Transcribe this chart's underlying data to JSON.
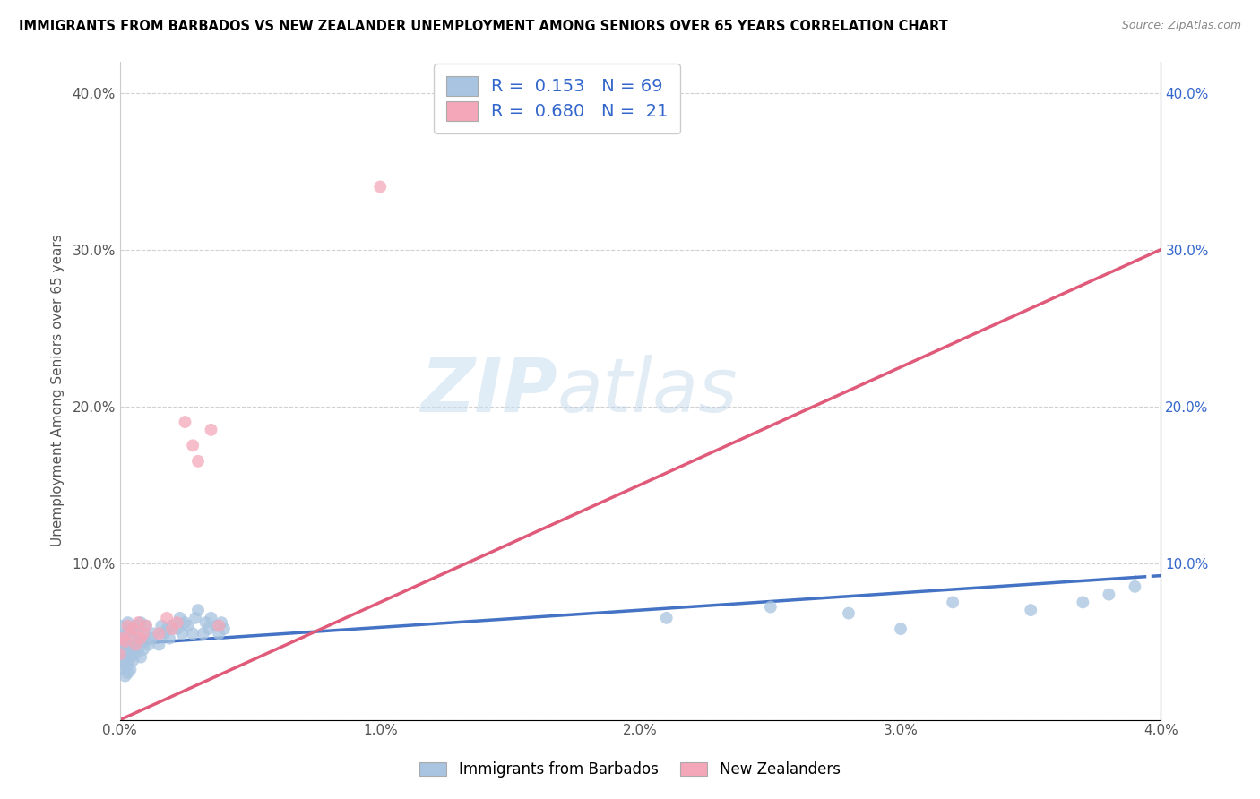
{
  "title": "IMMIGRANTS FROM BARBADOS VS NEW ZEALANDER UNEMPLOYMENT AMONG SENIORS OVER 65 YEARS CORRELATION CHART",
  "source": "Source: ZipAtlas.com",
  "ylabel": "Unemployment Among Seniors over 65 years",
  "xlim": [
    0.0,
    0.04
  ],
  "ylim": [
    0.0,
    0.42
  ],
  "xticks": [
    0.0,
    0.01,
    0.02,
    0.03,
    0.04
  ],
  "xtick_labels": [
    "0.0%",
    "1.0%",
    "2.0%",
    "3.0%",
    "4.0%"
  ],
  "yticks": [
    0.0,
    0.1,
    0.2,
    0.3,
    0.4
  ],
  "ytick_labels": [
    "",
    "10.0%",
    "20.0%",
    "30.0%",
    "40.0%"
  ],
  "blue_color": "#a8c4e0",
  "pink_color": "#f4a7b9",
  "blue_line_color": "#4472c4",
  "blue_line_dash": "--",
  "pink_line_color": "#e05a7a",
  "pink_line_dash": "-",
  "legend_text_color": "#3366cc",
  "R_blue": 0.153,
  "N_blue": 69,
  "R_pink": 0.68,
  "N_pink": 21,
  "watermark_zip": "ZIP",
  "watermark_atlas": "atlas",
  "blue_scatter_x": [
    0.0,
    0.0,
    0.0,
    0.0,
    0.0,
    0.0002,
    0.0002,
    0.0002,
    0.0002,
    0.0002,
    0.0003,
    0.0003,
    0.0003,
    0.0003,
    0.0003,
    0.0003,
    0.0004,
    0.0004,
    0.0004,
    0.0004,
    0.0005,
    0.0005,
    0.0005,
    0.0006,
    0.0006,
    0.0006,
    0.0007,
    0.0007,
    0.0008,
    0.0008,
    0.0008,
    0.0009,
    0.0009,
    0.001,
    0.001,
    0.0011,
    0.0012,
    0.0013,
    0.0015,
    0.0016,
    0.0017,
    0.0018,
    0.0019,
    0.002,
    0.0022,
    0.0023,
    0.0024,
    0.0025,
    0.0026,
    0.0028,
    0.0029,
    0.003,
    0.0032,
    0.0033,
    0.0034,
    0.0035,
    0.0037,
    0.0038,
    0.0039,
    0.004,
    0.021,
    0.025,
    0.028,
    0.03,
    0.032,
    0.035,
    0.037,
    0.038,
    0.039
  ],
  "blue_scatter_y": [
    0.032,
    0.038,
    0.045,
    0.052,
    0.06,
    0.028,
    0.035,
    0.042,
    0.048,
    0.055,
    0.03,
    0.035,
    0.04,
    0.048,
    0.055,
    0.062,
    0.032,
    0.04,
    0.048,
    0.058,
    0.038,
    0.045,
    0.058,
    0.042,
    0.05,
    0.06,
    0.045,
    0.055,
    0.04,
    0.05,
    0.062,
    0.045,
    0.055,
    0.05,
    0.06,
    0.048,
    0.052,
    0.055,
    0.048,
    0.06,
    0.055,
    0.058,
    0.052,
    0.06,
    0.058,
    0.065,
    0.055,
    0.062,
    0.06,
    0.055,
    0.065,
    0.07,
    0.055,
    0.062,
    0.058,
    0.065,
    0.06,
    0.055,
    0.062,
    0.058,
    0.065,
    0.072,
    0.068,
    0.058,
    0.075,
    0.07,
    0.075,
    0.08,
    0.085
  ],
  "pink_scatter_x": [
    0.0,
    0.0001,
    0.0002,
    0.0003,
    0.0004,
    0.0005,
    0.0006,
    0.0007,
    0.0008,
    0.0009,
    0.001,
    0.0015,
    0.0018,
    0.002,
    0.0022,
    0.0025,
    0.0028,
    0.003,
    0.0035,
    0.0038,
    0.01
  ],
  "pink_scatter_y": [
    0.042,
    0.052,
    0.05,
    0.06,
    0.055,
    0.058,
    0.048,
    0.062,
    0.052,
    0.055,
    0.06,
    0.055,
    0.065,
    0.058,
    0.062,
    0.19,
    0.175,
    0.165,
    0.185,
    0.06,
    0.34
  ],
  "pink_trend_x0": 0.0,
  "pink_trend_x1": 0.04,
  "pink_trend_y0": 0.0,
  "pink_trend_y1": 0.3,
  "blue_trend_x0": 0.0,
  "blue_trend_x1": 0.04,
  "blue_trend_y0": 0.048,
  "blue_trend_y1": 0.092
}
